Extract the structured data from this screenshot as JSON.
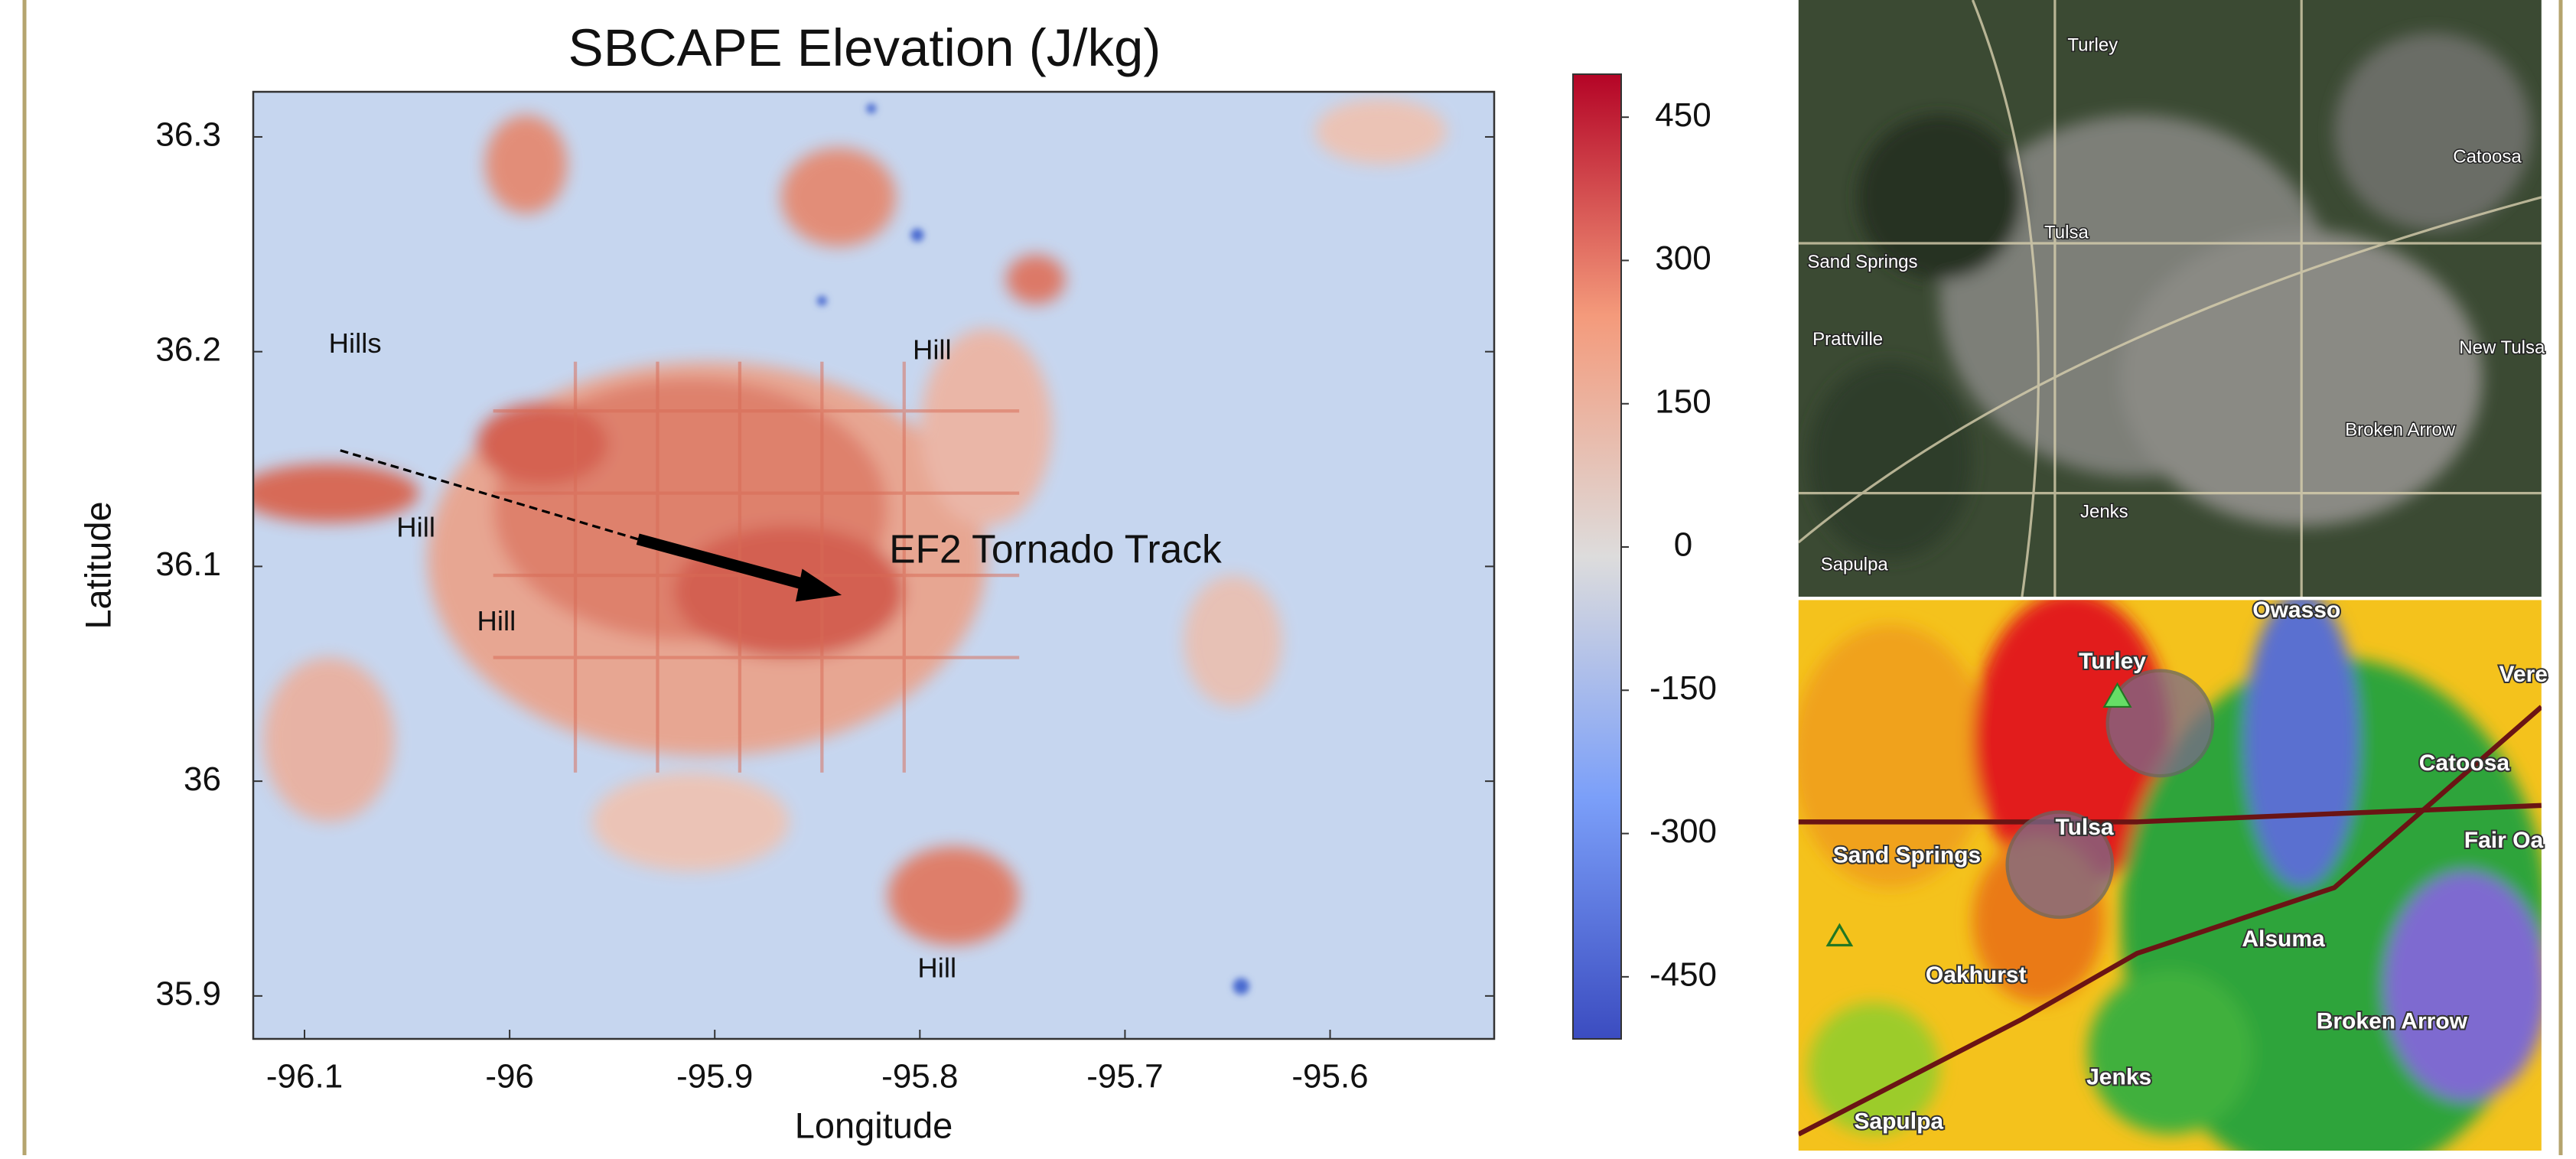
{
  "chart_data": {
    "type": "heatmap",
    "title": "SBCAPE Elevation (J/kg)",
    "xlabel": "Longitude",
    "ylabel": "Latitude",
    "xlim": [
      -96.125,
      -95.52
    ],
    "ylim": [
      35.88,
      36.321
    ],
    "xticks": [
      -96.1,
      -96.0,
      -95.9,
      -95.8,
      -95.7,
      -95.6
    ],
    "yticks": [
      35.9,
      36.0,
      36.1,
      36.2,
      36.3
    ],
    "colorbar": {
      "clim": [
        -515,
        495
      ],
      "ticks": [
        -450,
        -300,
        -150,
        0,
        150,
        300,
        450
      ],
      "colormap": "coolwarm"
    },
    "annotations": [
      "Hills",
      "Hill",
      "Hill",
      "Hill",
      "Hill",
      "EF2 Tornado Track"
    ]
  },
  "satellite_map": {
    "labels": [
      "Turley",
      "Tulsa",
      "Sand Springs",
      "Prattville",
      "Catoosa",
      "New Tulsa",
      "Broken Arrow",
      "Jenks",
      "Sapulpa"
    ]
  },
  "radar_map": {
    "labels": [
      "Owasso",
      "Turley",
      "Vere",
      "Catoosa",
      "Tulsa",
      "Sand Springs",
      "Fair Oa",
      "Alsuma",
      "Oakhurst",
      "Broken Arrow",
      "Jenks",
      "Sapulpa"
    ]
  }
}
